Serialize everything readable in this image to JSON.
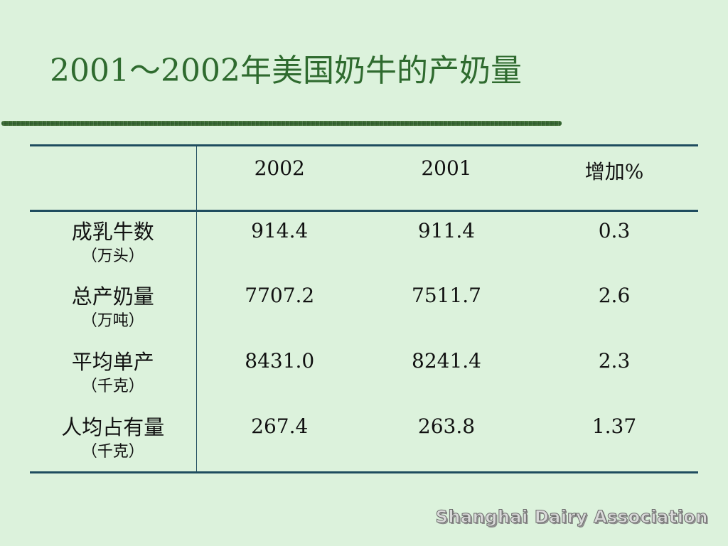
{
  "slide": {
    "title": "2001～2002年美国奶牛的产奶量"
  },
  "table": {
    "headers": [
      "",
      "2002",
      "2001",
      "增加%"
    ],
    "rows": [
      {
        "label": "成乳牛数",
        "unit": "（万头）",
        "v2002": "914.4",
        "v2001": "911.4",
        "increase": "0.3"
      },
      {
        "label": "总产奶量",
        "unit": "（万吨）",
        "v2002": "7707.2",
        "v2001": "7511.7",
        "increase": "2.6"
      },
      {
        "label": "平均单产",
        "unit": "（千克）",
        "v2002": "8431.0",
        "v2001": "8241.4",
        "increase": "2.3"
      },
      {
        "label": "人均占有量",
        "unit": "（千克）",
        "v2002": "267.4",
        "v2001": "263.8",
        "increase": "1.37"
      }
    ]
  },
  "footer": {
    "watermark": "Shanghai Dairy Association"
  },
  "colors": {
    "background": "#dcf2dc",
    "title": "#2f6b2f",
    "rule": "#1f4d5f"
  }
}
